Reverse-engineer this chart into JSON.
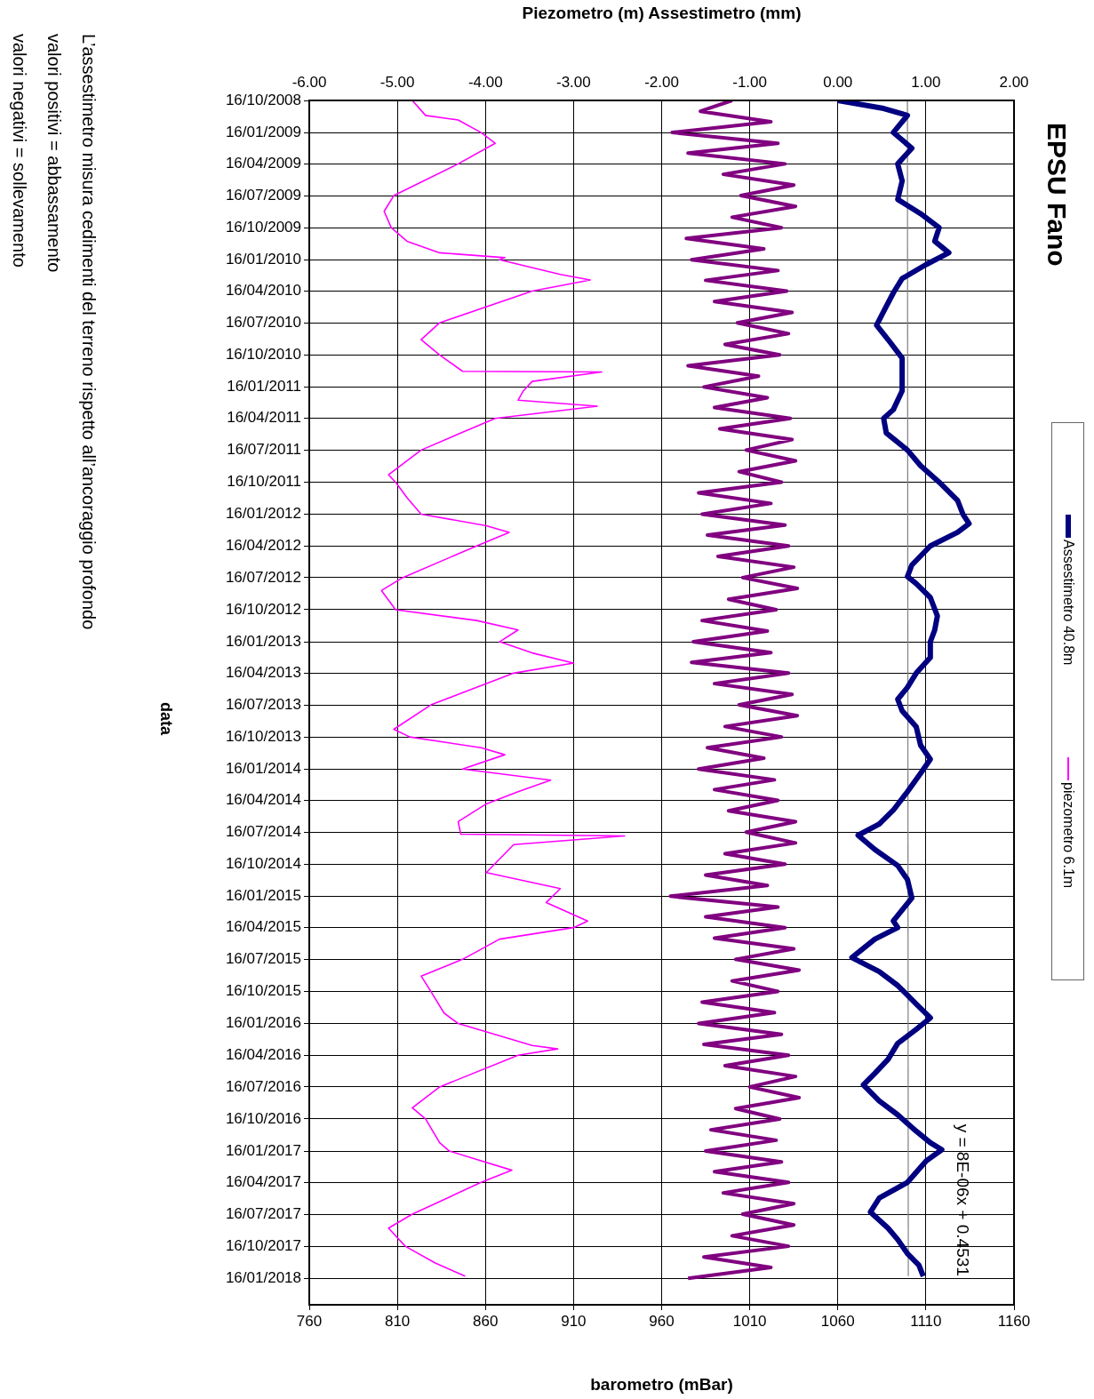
{
  "chart_data": {
    "type": "line",
    "title": "EPSU Fano",
    "orientation": "horizontal",
    "ylabel": "data",
    "x2label": "Piezometro (m) Assestimetro (mm)",
    "xlabel": "barometro (mBar)",
    "ylim": [
      "2018-04-02",
      "2008-10-16"
    ],
    "yticks": [
      {
        "value": "2008-10-16",
        "label": "16/10/2008"
      },
      {
        "value": "2009-01-16",
        "label": "16/01/2009"
      },
      {
        "value": "2009-04-16",
        "label": "16/04/2009"
      },
      {
        "value": "2009-07-16",
        "label": "16/07/2009"
      },
      {
        "value": "2009-10-16",
        "label": "16/10/2009"
      },
      {
        "value": "2010-01-16",
        "label": "16/01/2010"
      },
      {
        "value": "2010-04-16",
        "label": "16/04/2010"
      },
      {
        "value": "2010-07-16",
        "label": "16/07/2010"
      },
      {
        "value": "2010-10-16",
        "label": "16/10/2010"
      },
      {
        "value": "2011-01-16",
        "label": "16/01/2011"
      },
      {
        "value": "2011-04-16",
        "label": "16/04/2011"
      },
      {
        "value": "2011-07-16",
        "label": "16/07/2011"
      },
      {
        "value": "2011-10-16",
        "label": "16/10/2011"
      },
      {
        "value": "2012-01-16",
        "label": "16/01/2012"
      },
      {
        "value": "2012-04-16",
        "label": "16/04/2012"
      },
      {
        "value": "2012-07-16",
        "label": "16/07/2012"
      },
      {
        "value": "2012-10-16",
        "label": "16/10/2012"
      },
      {
        "value": "2013-01-16",
        "label": "16/01/2013"
      },
      {
        "value": "2013-04-16",
        "label": "16/04/2013"
      },
      {
        "value": "2013-07-16",
        "label": "16/07/2013"
      },
      {
        "value": "2013-10-16",
        "label": "16/10/2013"
      },
      {
        "value": "2014-01-16",
        "label": "16/01/2014"
      },
      {
        "value": "2014-04-16",
        "label": "16/04/2014"
      },
      {
        "value": "2014-07-16",
        "label": "16/07/2014"
      },
      {
        "value": "2014-10-16",
        "label": "16/10/2014"
      },
      {
        "value": "2015-01-16",
        "label": "16/01/2015"
      },
      {
        "value": "2015-04-16",
        "label": "16/04/2015"
      },
      {
        "value": "2015-07-16",
        "label": "16/07/2015"
      },
      {
        "value": "2015-10-16",
        "label": "16/10/2015"
      },
      {
        "value": "2016-01-16",
        "label": "16/01/2016"
      },
      {
        "value": "2016-04-16",
        "label": "16/04/2016"
      },
      {
        "value": "2016-07-16",
        "label": "16/07/2016"
      },
      {
        "value": "2016-10-16",
        "label": "16/10/2016"
      },
      {
        "value": "2017-01-16",
        "label": "16/01/2017"
      },
      {
        "value": "2017-04-16",
        "label": "16/04/2017"
      },
      {
        "value": "2017-07-16",
        "label": "16/07/2017"
      },
      {
        "value": "2017-10-16",
        "label": "16/10/2017"
      },
      {
        "value": "2018-01-16",
        "label": "16/01/2018"
      }
    ],
    "x2lim": [
      -6,
      2
    ],
    "x2ticks": [
      {
        "value": -6,
        "label": "-6.00"
      },
      {
        "value": -5,
        "label": "-5.00"
      },
      {
        "value": -4,
        "label": "-4.00"
      },
      {
        "value": -3,
        "label": "-3.00"
      },
      {
        "value": -2,
        "label": "-2.00"
      },
      {
        "value": -1,
        "label": "-1.00"
      },
      {
        "value": 0,
        "label": "0.00"
      },
      {
        "value": 1,
        "label": "1.00"
      },
      {
        "value": 2,
        "label": "2.00"
      }
    ],
    "xlim": [
      760,
      1160
    ],
    "xticks": [
      760,
      810,
      860,
      910,
      960,
      1010,
      1060,
      1110,
      1160
    ],
    "grid": true,
    "legend": "right",
    "marker": "none",
    "series": [
      {
        "name": "Assestimetro 40.8m",
        "color": "#000080",
        "axis": "x2",
        "x": [
          "2008-10-16",
          "2008-11-08",
          "2008-11-28",
          "2009-01-16",
          "2009-03-02",
          "2009-04-16",
          "2009-06-04",
          "2009-07-27",
          "2009-09-06",
          "2009-10-16",
          "2009-11-24",
          "2009-12-27",
          "2010-01-30",
          "2010-03-11",
          "2010-04-21",
          "2010-06-13",
          "2010-07-23",
          "2010-09-02",
          "2010-10-25",
          "2010-12-18",
          "2011-01-27",
          "2011-03-22",
          "2011-04-16",
          "2011-05-28",
          "2011-07-16",
          "2011-08-30",
          "2011-10-16",
          "2011-12-08",
          "2012-01-16",
          "2012-02-12",
          "2012-03-08",
          "2012-04-16",
          "2012-06-10",
          "2012-07-13",
          "2012-08-02",
          "2012-09-11",
          "2012-11-03",
          "2012-12-13",
          "2013-01-16",
          "2013-03-02",
          "2013-04-16",
          "2013-05-27",
          "2013-06-30",
          "2013-08-02",
          "2013-09-17",
          "2013-11-09",
          "2013-12-19",
          "2014-01-28",
          "2014-03-22",
          "2014-05-14",
          "2014-06-23",
          "2014-07-25",
          "2014-09-04",
          "2014-10-20",
          "2014-11-29",
          "2015-01-21",
          "2015-03-28",
          "2015-04-16",
          "2015-05-19",
          "2015-07-11",
          "2015-08-20",
          "2015-09-29",
          "2015-11-21",
          "2015-12-31",
          "2016-02-02",
          "2016-03-13",
          "2016-04-28",
          "2016-06-07",
          "2016-07-10",
          "2016-08-25",
          "2016-10-04",
          "2016-11-20",
          "2016-12-23",
          "2017-01-12",
          "2017-02-14",
          "2017-04-16",
          "2017-05-31",
          "2017-07-10",
          "2017-08-25",
          "2017-09-27",
          "2017-11-06",
          "2017-12-09",
          "2018-01-10"
        ],
        "values": [
          0.0,
          0.52,
          0.79,
          0.63,
          0.84,
          0.68,
          0.73,
          0.68,
          0.94,
          1.15,
          1.1,
          1.26,
          1.0,
          0.73,
          0.63,
          0.52,
          0.44,
          0.57,
          0.73,
          0.73,
          0.73,
          0.63,
          0.52,
          0.55,
          0.79,
          0.94,
          1.15,
          1.36,
          1.42,
          1.49,
          1.36,
          1.05,
          0.84,
          0.79,
          0.89,
          1.05,
          1.13,
          1.1,
          1.05,
          1.05,
          0.89,
          0.79,
          0.68,
          0.73,
          0.89,
          0.94,
          1.05,
          0.94,
          0.79,
          0.63,
          0.47,
          0.23,
          0.42,
          0.68,
          0.79,
          0.84,
          0.63,
          0.68,
          0.42,
          0.16,
          0.47,
          0.68,
          0.89,
          1.05,
          0.89,
          0.68,
          0.57,
          0.42,
          0.29,
          0.47,
          0.68,
          0.89,
          1.05,
          1.18,
          1.0,
          0.79,
          0.47,
          0.37,
          0.57,
          0.68,
          0.79,
          0.92,
          0.97
        ]
      },
      {
        "name": "piezometro 6.1m",
        "color": "#ff00ff",
        "axis": "x2",
        "x": [
          "2008-10-16",
          "2008-11-28",
          "2008-12-11",
          "2009-01-16",
          "2009-02-16",
          "2009-04-16",
          "2009-07-16",
          "2009-08-30",
          "2009-10-16",
          "2009-11-24",
          "2009-12-27",
          "2010-01-10",
          "2010-01-16",
          "2010-02-27",
          "2010-03-15",
          "2010-04-16",
          "2010-07-16",
          "2010-09-02",
          "2010-10-16",
          "2010-12-02",
          "2010-12-04",
          "2010-12-31",
          "2011-01-27",
          "2011-02-23",
          "2011-03-12",
          "2011-04-16",
          "2011-07-16",
          "2011-09-25",
          "2011-10-16",
          "2011-11-30",
          "2012-01-16",
          "2012-02-18",
          "2012-03-08",
          "2012-04-16",
          "2012-07-16",
          "2012-08-22",
          "2012-10-16",
          "2012-11-16",
          "2012-12-13",
          "2013-01-16",
          "2013-02-17",
          "2013-03-18",
          "2013-04-16",
          "2013-07-16",
          "2013-09-24",
          "2013-10-16",
          "2013-11-16",
          "2013-12-06",
          "2014-01-16",
          "2014-02-17",
          "2014-03-22",
          "2014-04-26",
          "2014-06-16",
          "2014-07-22",
          "2014-07-27",
          "2014-08-21",
          "2014-11-09",
          "2014-12-25",
          "2015-02-03",
          "2015-03-28",
          "2015-04-16",
          "2015-05-19",
          "2015-07-16",
          "2015-09-02",
          "2015-10-16",
          "2015-12-17",
          "2016-01-16",
          "2016-03-19",
          "2016-03-29",
          "2016-04-16",
          "2016-07-16",
          "2016-09-14",
          "2016-10-16",
          "2016-12-23",
          "2017-01-16",
          "2017-03-12",
          "2017-04-16",
          "2017-07-16",
          "2017-08-25",
          "2017-10-16",
          "2017-12-03",
          "2018-01-10"
        ],
        "values": [
          -4.83,
          -4.68,
          -4.31,
          -4.05,
          -3.89,
          -4.31,
          -5.04,
          -5.15,
          -5.07,
          -4.89,
          -4.52,
          -3.78,
          -3.84,
          -3.15,
          -2.81,
          -3.47,
          -4.52,
          -4.73,
          -4.52,
          -4.26,
          -2.68,
          -3.47,
          -3.57,
          -3.63,
          -2.73,
          -3.89,
          -4.73,
          -5.1,
          -5.02,
          -4.89,
          -4.73,
          -3.99,
          -3.73,
          -4.1,
          -4.94,
          -5.18,
          -5.02,
          -4.1,
          -3.63,
          -3.84,
          -3.47,
          -3.0,
          -3.68,
          -4.62,
          -5.04,
          -4.86,
          -4.05,
          -3.78,
          -4.26,
          -3.26,
          -3.63,
          -3.99,
          -4.31,
          -4.28,
          -2.42,
          -3.68,
          -3.99,
          -3.15,
          -3.31,
          -2.84,
          -3.0,
          -3.84,
          -4.26,
          -4.73,
          -4.62,
          -4.47,
          -4.31,
          -3.47,
          -3.18,
          -3.63,
          -4.52,
          -4.83,
          -4.68,
          -4.52,
          -4.41,
          -3.7,
          -4.05,
          -4.83,
          -5.1,
          -4.91,
          -4.57,
          -4.23
        ]
      },
      {
        "color": "#800080",
        "x": [
          "2008-10-16",
          "2008-11-16",
          "2008-12-16",
          "2009-01-16",
          "2009-02-16",
          "2009-03-16",
          "2009-04-16",
          "2009-05-16",
          "2009-06-16",
          "2009-07-16",
          "2009-08-16",
          "2009-09-16",
          "2009-10-16",
          "2009-11-16",
          "2009-12-16",
          "2010-01-16",
          "2010-02-16",
          "2010-03-16",
          "2010-04-16",
          "2010-05-16",
          "2010-06-16",
          "2010-07-16",
          "2010-08-16",
          "2010-09-16",
          "2010-10-16",
          "2010-11-16",
          "2010-12-16",
          "2011-01-16",
          "2011-02-16",
          "2011-03-16",
          "2011-04-16",
          "2011-05-16",
          "2011-06-16",
          "2011-07-16",
          "2011-08-16",
          "2011-09-16",
          "2011-10-16",
          "2011-11-16",
          "2011-12-16",
          "2012-01-16",
          "2012-02-16",
          "2012-03-16",
          "2012-04-16",
          "2012-05-16",
          "2012-06-16",
          "2012-07-16",
          "2012-08-16",
          "2012-09-16",
          "2012-10-16",
          "2012-11-16",
          "2012-12-16",
          "2013-01-16",
          "2013-02-16",
          "2013-03-16",
          "2013-04-16",
          "2013-05-16",
          "2013-06-16",
          "2013-07-16",
          "2013-08-16",
          "2013-09-16",
          "2013-10-16",
          "2013-11-16",
          "2013-12-16",
          "2014-01-16",
          "2014-02-16",
          "2014-03-16",
          "2014-04-16",
          "2014-05-16",
          "2014-06-16",
          "2014-07-16",
          "2014-08-16",
          "2014-09-16",
          "2014-10-16",
          "2014-11-16",
          "2014-12-16",
          "2015-01-16",
          "2015-02-16",
          "2015-03-16",
          "2015-04-16",
          "2015-05-16",
          "2015-06-16",
          "2015-07-16",
          "2015-08-16",
          "2015-09-16",
          "2015-10-16",
          "2015-11-16",
          "2015-12-16",
          "2016-01-16",
          "2016-02-16",
          "2016-03-16",
          "2016-04-16",
          "2016-05-16",
          "2016-06-16",
          "2016-07-16",
          "2016-08-16",
          "2016-09-16",
          "2016-10-16",
          "2016-11-16",
          "2016-12-16",
          "2017-01-16",
          "2017-02-16",
          "2017-03-16",
          "2017-04-16",
          "2017-05-16",
          "2017-06-16",
          "2017-07-16",
          "2017-08-16",
          "2017-09-16",
          "2017-10-16",
          "2017-11-16",
          "2017-12-16",
          "2018-01-16"
        ],
        "values": [
          1000,
          982,
          1022,
          966,
          1026,
          975,
          1030,
          995,
          1035,
          1005,
          1036,
          1000,
          1028,
          974,
          1018,
          977,
          1026,
          985,
          1031,
          990,
          1034,
          1003,
          1032,
          996,
          1027,
          975,
          1015,
          984,
          1020,
          990,
          1033,
          993,
          1034,
          1008,
          1036,
          1004,
          1028,
          981,
          1022,
          983,
          1030,
          986,
          1032,
          992,
          1035,
          1006,
          1037,
          998,
          1025,
          983,
          1020,
          978,
          1022,
          977,
          1032,
          990,
          1034,
          1004,
          1037,
          996,
          1028,
          986,
          1018,
          981,
          1024,
          990,
          1026,
          998,
          1036,
          1008,
          1036,
          996,
          1030,
          985,
          1020,
          965,
          1026,
          985,
          1030,
          990,
          1035,
          1002,
          1038,
          1000,
          1026,
          983,
          1024,
          981,
          1028,
          984,
          1032,
          996,
          1036,
          1010,
          1038,
          1002,
          1027,
          988,
          1025,
          985,
          1028,
          990,
          1032,
          995,
          1035,
          1006,
          1035,
          1000,
          1032,
          984,
          1022,
          975
        ]
      },
      {
        "type": "line",
        "color": "#808080",
        "axis": "x2",
        "x": [
          "2008-10-16",
          "2018-01-10"
        ],
        "values": [
          0.79,
          0.8
        ]
      }
    ],
    "annotations": [
      "y = 8E-06x + 0.4531",
      "L’assestimetro misura cedimenti del terreno rispetto all’ancoraggio profondo",
      "valori positivi = abbassamento",
      "valori negativi = sollevamento"
    ]
  }
}
